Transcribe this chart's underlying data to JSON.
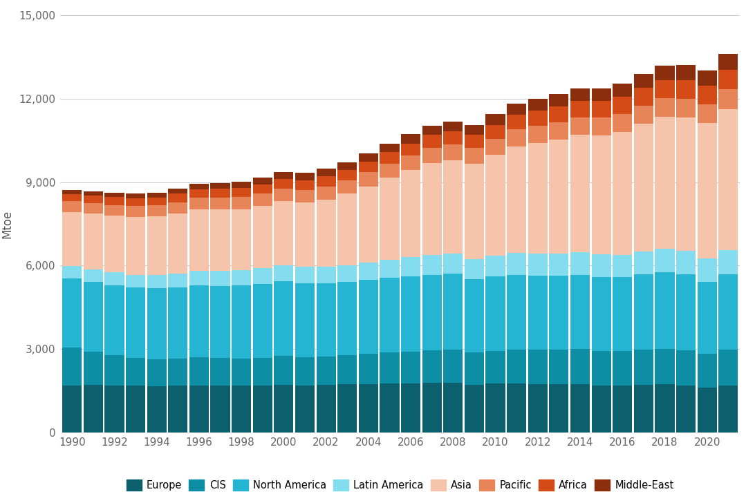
{
  "years": [
    1990,
    1991,
    1992,
    1993,
    1994,
    1995,
    1996,
    1997,
    1998,
    1999,
    2000,
    2001,
    2002,
    2003,
    2004,
    2005,
    2006,
    2007,
    2008,
    2009,
    2010,
    2011,
    2012,
    2013,
    2014,
    2015,
    2016,
    2017,
    2018,
    2019,
    2020,
    2021
  ],
  "series": {
    "Europe": [
      1700,
      1710,
      1700,
      1680,
      1670,
      1680,
      1700,
      1680,
      1700,
      1700,
      1720,
      1700,
      1710,
      1730,
      1740,
      1760,
      1770,
      1790,
      1790,
      1720,
      1760,
      1770,
      1740,
      1740,
      1730,
      1700,
      1700,
      1720,
      1730,
      1700,
      1610,
      1700
    ],
    "CIS": [
      1350,
      1200,
      1080,
      1010,
      970,
      970,
      1000,
      1000,
      970,
      990,
      1030,
      1020,
      1020,
      1050,
      1080,
      1110,
      1140,
      1170,
      1190,
      1150,
      1180,
      1220,
      1230,
      1240,
      1270,
      1240,
      1230,
      1270,
      1280,
      1250,
      1220,
      1270
    ],
    "North America": [
      2500,
      2510,
      2520,
      2520,
      2540,
      2560,
      2590,
      2590,
      2610,
      2650,
      2680,
      2650,
      2640,
      2640,
      2670,
      2690,
      2700,
      2710,
      2720,
      2640,
      2660,
      2680,
      2660,
      2660,
      2660,
      2650,
      2650,
      2690,
      2740,
      2730,
      2590,
      2710
    ],
    "Latin America": [
      430,
      440,
      450,
      460,
      480,
      500,
      520,
      530,
      550,
      560,
      580,
      580,
      590,
      600,
      630,
      660,
      690,
      710,
      730,
      730,
      760,
      780,
      790,
      800,
      810,
      810,
      810,
      830,
      850,
      850,
      840,
      870
    ],
    "Asia": [
      1950,
      2000,
      2040,
      2070,
      2100,
      2160,
      2200,
      2220,
      2200,
      2240,
      2300,
      2310,
      2420,
      2560,
      2730,
      2930,
      3130,
      3310,
      3360,
      3430,
      3620,
      3840,
      3990,
      4100,
      4230,
      4280,
      4420,
      4590,
      4740,
      4790,
      4860,
      5080
    ],
    "Pacific": [
      380,
      390,
      390,
      395,
      400,
      410,
      420,
      430,
      430,
      440,
      450,
      450,
      460,
      480,
      500,
      520,
      530,
      550,
      560,
      550,
      580,
      600,
      610,
      620,
      630,
      630,
      640,
      650,
      670,
      680,
      670,
      710
    ],
    "Africa": [
      260,
      270,
      275,
      280,
      290,
      300,
      310,
      320,
      330,
      340,
      350,
      360,
      370,
      380,
      390,
      410,
      430,
      450,
      470,
      480,
      500,
      520,
      540,
      560,
      580,
      600,
      620,
      640,
      650,
      670,
      680,
      700
    ],
    "Middle-East": [
      150,
      155,
      160,
      165,
      175,
      185,
      195,
      205,
      220,
      230,
      245,
      255,
      265,
      280,
      295,
      310,
      325,
      340,
      355,
      360,
      380,
      400,
      420,
      440,
      450,
      460,
      480,
      500,
      520,
      540,
      530,
      560
    ]
  },
  "colors": {
    "Europe": "#0c5f6d",
    "CIS": "#0d8ea4",
    "North America": "#25b5d2",
    "Latin America": "#83ddef",
    "Asia": "#f5c4aa",
    "Pacific": "#e88558",
    "Africa": "#d44b18",
    "Middle-East": "#8b2e0e"
  },
  "series_order": [
    "Europe",
    "CIS",
    "North America",
    "Latin America",
    "Asia",
    "Pacific",
    "Africa",
    "Middle-East"
  ],
  "ylabel": "Mtoe",
  "ylim": [
    0,
    15000
  ],
  "yticks": [
    0,
    3000,
    6000,
    9000,
    12000,
    15000
  ],
  "background_color": "#ffffff",
  "grid_color": "#c8ccd0"
}
